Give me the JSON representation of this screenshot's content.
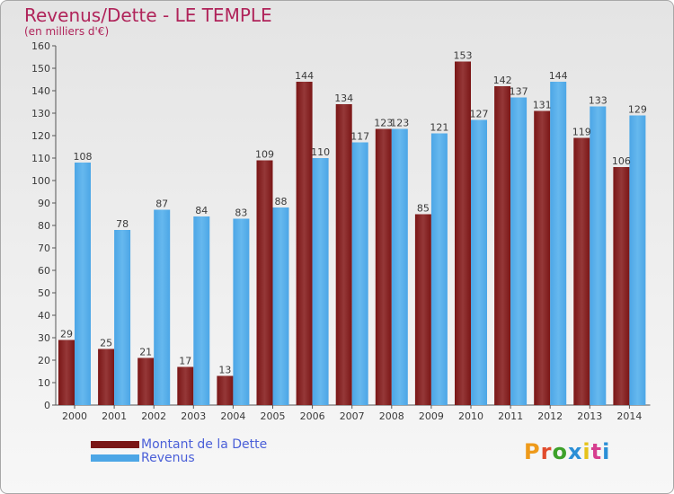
{
  "header": {
    "title": "Revenus/Dette - LE TEMPLE",
    "subtitle": "(en milliers d'€)"
  },
  "colors": {
    "debt": "#7a1616",
    "debt_light": "#953838",
    "revenue": "#4ca6e6",
    "revenue_light": "#66b8ee",
    "axis_text": "#3a3a3a",
    "logo": [
      "#ee9a1a",
      "#e14b2c",
      "#3da12a",
      "#2b8fd6",
      "#e6c21a",
      "#d63e8f",
      "#2b8fd6"
    ]
  },
  "logo": {
    "text": "Proxiti",
    "letters": [
      "P",
      "r",
      "o",
      "x",
      "i",
      "t",
      "i"
    ]
  },
  "chart_data": {
    "type": "bar",
    "categories": [
      "2000",
      "2001",
      "2002",
      "2003",
      "2004",
      "2005",
      "2006",
      "2007",
      "2008",
      "2009",
      "2010",
      "2011",
      "2012",
      "2013",
      "2014"
    ],
    "series": [
      {
        "name": "Montant de la Dette",
        "values": [
          29,
          25,
          21,
          17,
          13,
          109,
          144,
          134,
          123,
          85,
          153,
          142,
          131,
          119,
          106
        ]
      },
      {
        "name": "Revenus",
        "values": [
          108,
          78,
          87,
          84,
          83,
          88,
          110,
          117,
          123,
          121,
          127,
          137,
          144,
          133,
          129
        ]
      }
    ],
    "yticks": [
      0,
      10,
      20,
      30,
      40,
      50,
      60,
      70,
      80,
      90,
      100,
      110,
      120,
      130,
      140,
      150,
      160
    ],
    "ylim": [
      0,
      160
    ],
    "grid": false,
    "legend_position": "bottom-left"
  }
}
